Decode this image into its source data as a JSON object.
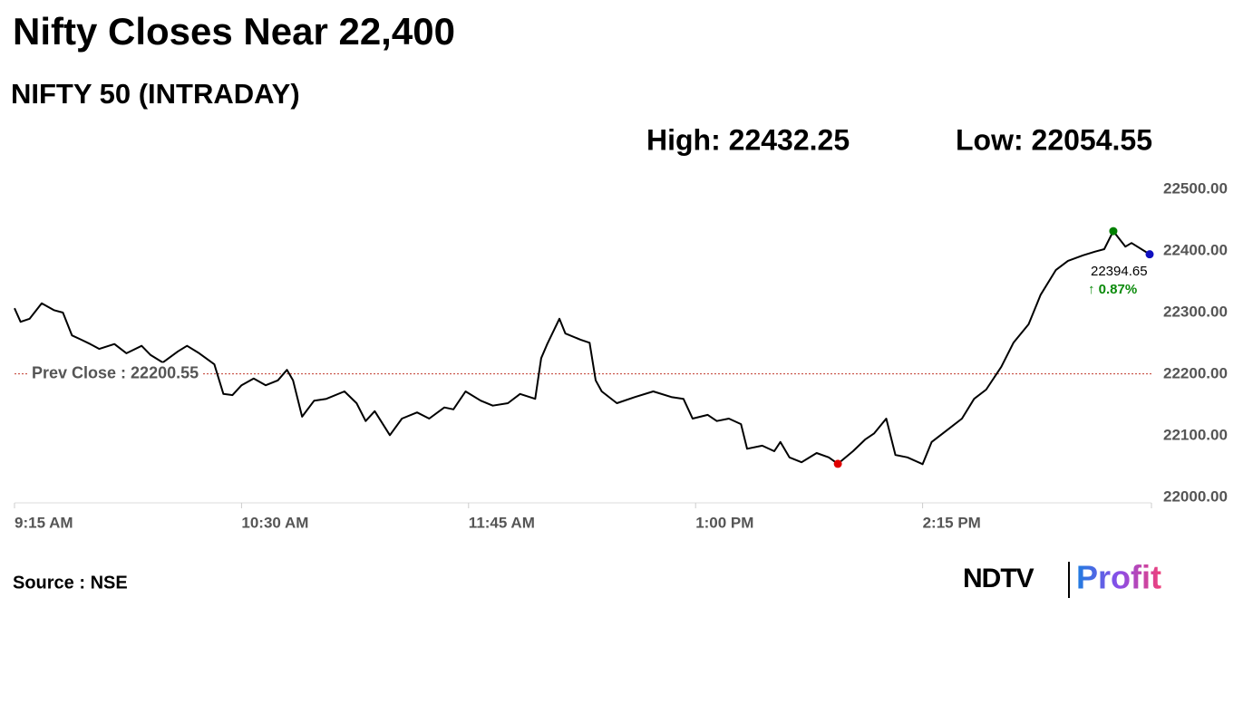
{
  "chart_data": {
    "type": "line",
    "title": "Nifty Closes Near 22,400",
    "subtitle": "NIFTY 50 (INTRADAY)",
    "high_text": "High: 22432.25",
    "low_text": "Low: 22054.55",
    "source": "Source : NSE",
    "logo": {
      "left": "NDTV",
      "right": "Profit"
    },
    "color": "#000000",
    "x": [
      555,
      557,
      560,
      564,
      568,
      571,
      574,
      577,
      580,
      583,
      588,
      592,
      597,
      600,
      604,
      609,
      612,
      616,
      621,
      624,
      627,
      630,
      634,
      638,
      642,
      645,
      647,
      650,
      654,
      658,
      664,
      668,
      671,
      674,
      679,
      683,
      688,
      692,
      697,
      700,
      704,
      709,
      713,
      718,
      722,
      727,
      729,
      731,
      735,
      737,
      742,
      745,
      747,
      749,
      754,
      760,
      766,
      772,
      776,
      779,
      784,
      787,
      791,
      795,
      797,
      802,
      806,
      808,
      811,
      815,
      820,
      824,
      827,
      832,
      836,
      839,
      843,
      846,
      850,
      855,
      858,
      863,
      868,
      872,
      876,
      881,
      885,
      890,
      894,
      899,
      903,
      908,
      912,
      915,
      918,
      922,
      924,
      930
    ],
    "values": [
      22307,
      22285,
      22290,
      22315,
      22304,
      22300,
      22263,
      22256,
      22249,
      22241,
      22249,
      22234,
      22246,
      22231,
      22219,
      22237,
      22246,
      22234,
      22216,
      22168,
      22166,
      22182,
      22193,
      22182,
      22190,
      22207,
      22190,
      22131,
      22157,
      22160,
      22172,
      22153,
      22124,
      22140,
      22101,
      22128,
      22138,
      22128,
      22146,
      22143,
      22172,
      22157,
      22149,
      22153,
      22168,
      22160,
      22226,
      22249,
      22290,
      22266,
      22256,
      22251,
      22190,
      22172,
      22153,
      22163,
      22172,
      22163,
      22160,
      22128,
      22134,
      22124,
      22128,
      22119,
      22079,
      22084,
      22075,
      22090,
      22065,
      22057,
      22072,
      22065,
      22054.55,
      22075,
      22094,
      22104,
      22128,
      22069,
      22065,
      22054,
      22090,
      22109,
      22128,
      22160,
      22175,
      22212,
      22251,
      22281,
      22329,
      22369,
      22384,
      22393,
      22399,
      22403,
      22432.25,
      22407,
      22413,
      22394.65
    ],
    "markers": [
      {
        "x": 918,
        "value": 22432.25,
        "color": "#008000"
      },
      {
        "x": 827,
        "value": 22054.55,
        "color": "#e00000"
      },
      {
        "x": 930,
        "value": 22394.65,
        "color": "#1010c0"
      }
    ],
    "last_label": "22394.65",
    "change_label": "↑ 0.87%",
    "reference_line": {
      "value": 22200.55,
      "label": "Prev Close : 22200.55",
      "color": "#c0392b"
    },
    "xlim": [
      555,
      930
    ],
    "xticks": [
      {
        "value": 555,
        "label": "9:15 AM"
      },
      {
        "value": 630,
        "label": "10:30 AM"
      },
      {
        "value": 705,
        "label": "11:45 AM"
      },
      {
        "value": 780,
        "label": "1:00 PM"
      },
      {
        "value": 855,
        "label": "2:15 PM"
      }
    ],
    "ylim": [
      22000,
      22500
    ],
    "yticks": [
      {
        "value": 22000,
        "label": "22000.00"
      },
      {
        "value": 22100,
        "label": "22100.00"
      },
      {
        "value": 22200,
        "label": "22200.00"
      },
      {
        "value": 22300,
        "label": "22300.00"
      },
      {
        "value": 22400,
        "label": "22400.00"
      },
      {
        "value": 22500,
        "label": "22500.00"
      }
    ],
    "grid": false
  }
}
